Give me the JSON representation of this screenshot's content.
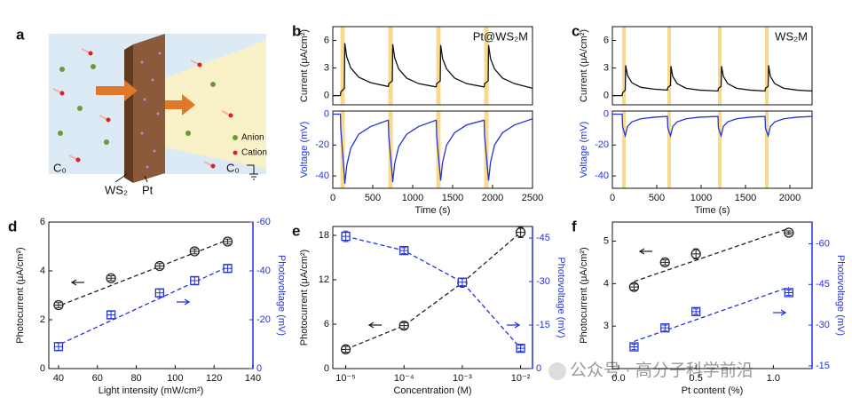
{
  "chart_data": [
    {
      "type": "line",
      "panel": "b",
      "annotation": "Pt@WS₂M",
      "ylabel": "Current (μA/cm²)",
      "x": [
        0,
        95,
        100,
        145,
        150,
        175,
        225,
        325,
        475,
        690,
        695,
        700,
        745,
        750,
        775,
        825,
        925,
        1075,
        1290,
        1295,
        1300,
        1345,
        1350,
        1375,
        1425,
        1525,
        1675,
        1890,
        1895,
        1900,
        1945,
        1950,
        1975,
        2025,
        2125,
        2275,
        2500
      ],
      "xlim": [
        0,
        2500
      ],
      "ylim": [
        -1,
        7.5
      ],
      "yticks": [
        0,
        3,
        6
      ],
      "highlights": [
        [
          95,
          150
        ],
        [
          695,
          750
        ],
        [
          1295,
          1350
        ],
        [
          1895,
          1950
        ]
      ],
      "highlight_color": "#f9d98c",
      "series": [
        {
          "color": "#111111",
          "values": [
            0,
            0,
            0.4,
            0.8,
            5.7,
            4.2,
            3.0,
            2.0,
            1.4,
            1.0,
            1.0,
            1.3,
            1.6,
            5.6,
            4.1,
            2.9,
            1.9,
            1.3,
            0.95,
            0.95,
            1.3,
            1.6,
            5.5,
            4.0,
            2.9,
            1.9,
            1.3,
            0.95,
            0.95,
            1.3,
            1.6,
            5.5,
            4.0,
            2.9,
            1.9,
            1.3,
            0.8
          ]
        }
      ]
    },
    {
      "type": "line",
      "ylabel": "Voltage (mV)",
      "ylabel_color": "#2233dd",
      "xlabel": "Time (s)",
      "x": [
        0,
        95,
        100,
        145,
        150,
        175,
        225,
        325,
        475,
        690,
        695,
        700,
        745,
        750,
        775,
        825,
        925,
        1075,
        1290,
        1295,
        1300,
        1345,
        1350,
        1375,
        1425,
        1525,
        1675,
        1890,
        1895,
        1900,
        1945,
        1950,
        1975,
        2025,
        2125,
        2275,
        2500
      ],
      "xlim": [
        0,
        2500
      ],
      "xticks": [
        0,
        500,
        1000,
        1500,
        2000,
        2500
      ],
      "ylim": [
        -48,
        2
      ],
      "yticks": [
        0,
        -20,
        -40
      ],
      "highlights": [
        [
          95,
          150
        ],
        [
          695,
          750
        ],
        [
          1295,
          1350
        ],
        [
          1895,
          1950
        ]
      ],
      "highlight_color": "#f9d98c",
      "series": [
        {
          "color": "#2233dd",
          "values": [
            0,
            0,
            -10,
            -40,
            -45,
            -33,
            -22,
            -13,
            -8,
            -4,
            -4,
            -14,
            -40,
            -44,
            -32,
            -21,
            -13,
            -8,
            -4,
            -4,
            -14,
            -40,
            -43,
            -31,
            -20,
            -12,
            -7,
            -4,
            -4,
            -14,
            -40,
            -43,
            -31,
            -20,
            -12,
            -7,
            -3
          ]
        }
      ]
    },
    {
      "type": "line",
      "panel": "c",
      "annotation": "WS₂M",
      "ylabel": "Current (μA/cm²)",
      "x": [
        0,
        110,
        115,
        145,
        150,
        170,
        220,
        320,
        470,
        620,
        625,
        655,
        660,
        680,
        730,
        830,
        980,
        1190,
        1195,
        1225,
        1230,
        1250,
        1300,
        1400,
        1550,
        1720,
        1725,
        1755,
        1760,
        1780,
        1830,
        1930,
        2080,
        2250
      ],
      "xlim": [
        0,
        2250
      ],
      "ylim": [
        -1,
        7.5
      ],
      "yticks": [
        0,
        3,
        6
      ],
      "highlights": [
        [
          110,
          150
        ],
        [
          620,
          660
        ],
        [
          1190,
          1230
        ],
        [
          1720,
          1760
        ]
      ],
      "highlight_color": "#f9d98c",
      "series": [
        {
          "color": "#111111",
          "values": [
            0,
            0,
            0.3,
            0.6,
            3.3,
            2.2,
            1.4,
            0.9,
            0.7,
            0.6,
            0.9,
            1.1,
            3.2,
            2.1,
            1.3,
            0.8,
            0.6,
            0.5,
            0.8,
            1.0,
            3.2,
            2.1,
            1.3,
            0.8,
            0.6,
            0.5,
            0.8,
            1.0,
            3.3,
            2.1,
            1.3,
            0.8,
            0.6,
            0.5
          ]
        }
      ]
    },
    {
      "type": "line",
      "ylabel": "Voltage (mV)",
      "ylabel_color": "#2233dd",
      "xlabel": "Time (s)",
      "x": [
        0,
        110,
        115,
        145,
        150,
        170,
        220,
        320,
        470,
        620,
        625,
        655,
        660,
        680,
        730,
        830,
        980,
        1190,
        1195,
        1225,
        1230,
        1250,
        1300,
        1400,
        1550,
        1720,
        1725,
        1755,
        1760,
        1780,
        1830,
        1930,
        2080,
        2250
      ],
      "xlim": [
        0,
        2250
      ],
      "xticks": [
        0,
        500,
        1000,
        1500,
        2000
      ],
      "ylim": [
        -48,
        2
      ],
      "yticks": [
        0,
        -20,
        -40
      ],
      "highlights": [
        [
          110,
          150
        ],
        [
          620,
          660
        ],
        [
          1190,
          1230
        ],
        [
          1720,
          1760
        ]
      ],
      "highlight_color": "#f9d98c",
      "series": [
        {
          "color": "#2233dd",
          "values": [
            0,
            0,
            -8,
            -14,
            -13,
            -8,
            -5,
            -3,
            -2,
            -1.5,
            -9,
            -14,
            -13,
            -8,
            -5,
            -3,
            -2,
            -1.5,
            -9,
            -14,
            -13,
            -8,
            -5,
            -3,
            -2,
            -1.5,
            -9,
            -14,
            -13,
            -8,
            -5,
            -3,
            -2,
            -1.5
          ]
        }
      ]
    },
    {
      "type": "scatter",
      "panel": "d",
      "xlabel": "Light intensity (mW/cm²)",
      "ylabel": "Photocurrent (μA/cm²)",
      "y2label": "Photovoltage (mV)",
      "y2_color": "#2233dd",
      "x": [
        40,
        67,
        92,
        110,
        127
      ],
      "xlim": [
        35,
        140
      ],
      "xticks": [
        40,
        60,
        80,
        100,
        120,
        140
      ],
      "ylim": [
        0,
        6
      ],
      "yticks": [
        0,
        2,
        4,
        6
      ],
      "y2lim": [
        0,
        -60
      ],
      "y2ticks": [
        0,
        -20,
        -40,
        -60
      ],
      "series": [
        {
          "color": "#222222",
          "marker": "circle",
          "values": [
            2.6,
            3.7,
            4.2,
            4.8,
            5.2
          ],
          "errors": [
            0.1,
            0.1,
            0.1,
            0.1,
            0.1
          ],
          "trend": {
            "x": [
              38,
              128
            ],
            "values": [
              2.5,
              5.3
            ]
          }
        },
        {
          "color": "#2233dd",
          "marker": "square",
          "axis": "y2",
          "values": [
            -9,
            -22,
            -31,
            -36,
            -41
          ],
          "errors": [
            1.5,
            1.5,
            1.5,
            1.5,
            1.5
          ],
          "trend": {
            "x": [
              38,
              128
            ],
            "values": [
              -9,
              -42
            ]
          }
        }
      ]
    },
    {
      "type": "scatter",
      "panel": "e",
      "xscale": "log",
      "xlabel": "Concentration (M)",
      "ylabel": "Photocurrent (μA/cm²)",
      "y2label": "Photovoltage (mV)",
      "y2_color": "#2233dd",
      "x": [
        1e-05,
        0.0001,
        0.001,
        0.01
      ],
      "xlim": [
        6e-06,
        0.016
      ],
      "xticks": [
        {
          "value": 1e-05,
          "label": "10⁻⁵"
        },
        {
          "value": 0.0001,
          "label": "10⁻⁴"
        },
        {
          "value": 0.001,
          "label": "10⁻³"
        },
        {
          "value": 0.01,
          "label": "10⁻²"
        }
      ],
      "ylim": [
        0,
        19.2
      ],
      "yticks": [
        0,
        6,
        12,
        18
      ],
      "y2lim": [
        0,
        -49
      ],
      "y2ticks": [
        0,
        -15,
        -30,
        -45
      ],
      "series": [
        {
          "color": "#222222",
          "marker": "circle",
          "linestyle": "dashed",
          "values": [
            2.6,
            5.8,
            11.6,
            18.4
          ],
          "errors": [
            0.4,
            0.4,
            0.5,
            0.7
          ]
        },
        {
          "color": "#2233dd",
          "marker": "square",
          "axis": "y2",
          "linestyle": "dashed",
          "values": [
            -45.6,
            -40.7,
            -29.8,
            -7
          ],
          "errors": [
            1.8,
            1,
            1.2,
            1
          ]
        }
      ]
    },
    {
      "type": "scatter",
      "panel": "f",
      "xlabel": "Pt content (%)",
      "ylabel": "Photocurrent (μA/cm²)",
      "y2label": "Photovoltage (mV)",
      "y2_color": "#2233dd",
      "x": [
        0.1,
        0.3,
        0.5,
        1.1
      ],
      "xlim": [
        -0.04,
        1.25
      ],
      "xticks": [
        {
          "value": 0,
          "label": "0.0"
        },
        {
          "value": 0.5,
          "label": "0.5"
        },
        {
          "value": 1,
          "label": "1.0"
        }
      ],
      "ylim": [
        2.0,
        5.45
      ],
      "yticks": [
        3,
        4,
        5
      ],
      "y2lim": [
        -14,
        -68
      ],
      "y2ticks": [
        -15,
        -30,
        -45,
        -60
      ],
      "series": [
        {
          "color": "#222222",
          "marker": "circle",
          "values": [
            3.92,
            4.5,
            4.7,
            5.2
          ],
          "errors": [
            0.07,
            0.06,
            0.12,
            0.04
          ],
          "trend": {
            "x": [
              0.1,
              1.1
            ],
            "values": [
              4.05,
              5.3
            ]
          }
        },
        {
          "color": "#2233dd",
          "marker": "square",
          "axis": "y2",
          "values": [
            -22,
            -29,
            -35,
            -42
          ],
          "errors": [
            1,
            1,
            1,
            1
          ],
          "trend": {
            "x": [
              0.1,
              1.1
            ],
            "values": [
              -24,
              -44
            ]
          }
        }
      ]
    }
  ],
  "schematic": {
    "label": "a",
    "anion": "Anion",
    "cation": "Cation",
    "left_concentration": "C₀",
    "right_concentration": "C₀",
    "ws2": "WS₂",
    "pt": "Pt"
  },
  "watermark": "公众号 · 高分子科学前沿"
}
